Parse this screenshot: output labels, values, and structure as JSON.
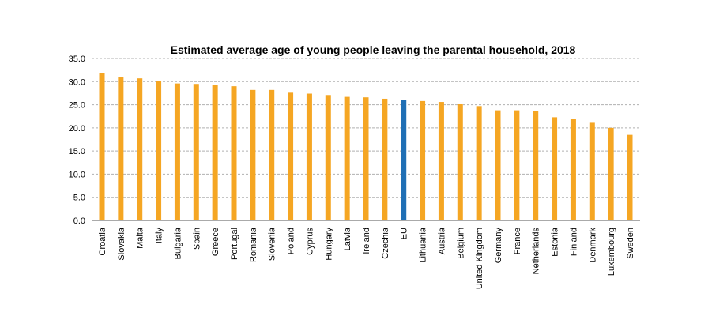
{
  "chart_data": {
    "type": "bar",
    "title": "Estimated average age of young people leaving the parental household, 2018",
    "xlabel": "",
    "ylabel": "",
    "ylim": [
      0,
      35
    ],
    "yticks": [
      "0.0",
      "5.0",
      "10.0",
      "15.0",
      "20.0",
      "25.0",
      "30.0",
      "35.0"
    ],
    "grid": true,
    "categories": [
      "Croatia",
      "Slovakia",
      "Malta",
      "Italy",
      "Bulgaria",
      "Spain",
      "Greece",
      "Portugal",
      "Romania",
      "Slovenia",
      "Poland",
      "Cyprus",
      "Hungary",
      "Latvia",
      "Ireland",
      "Czechia",
      "EU",
      "Lithuania",
      "Austria",
      "Belgium",
      "United Kingdom",
      "Germany",
      "France",
      "Netherlands",
      "Estonia",
      "Finland",
      "Denmark",
      "Luxembourg",
      "Sweden"
    ],
    "values": [
      31.8,
      30.9,
      30.7,
      30.1,
      29.6,
      29.5,
      29.3,
      29.0,
      28.2,
      28.2,
      27.6,
      27.4,
      27.1,
      26.7,
      26.6,
      26.3,
      26.0,
      25.8,
      25.6,
      25.1,
      24.7,
      23.8,
      23.8,
      23.7,
      22.3,
      21.9,
      21.1,
      20.0,
      18.5
    ],
    "colors": {
      "default": "#f5a623",
      "highlight": "#1f6fb5",
      "highlight_category": "EU"
    }
  }
}
